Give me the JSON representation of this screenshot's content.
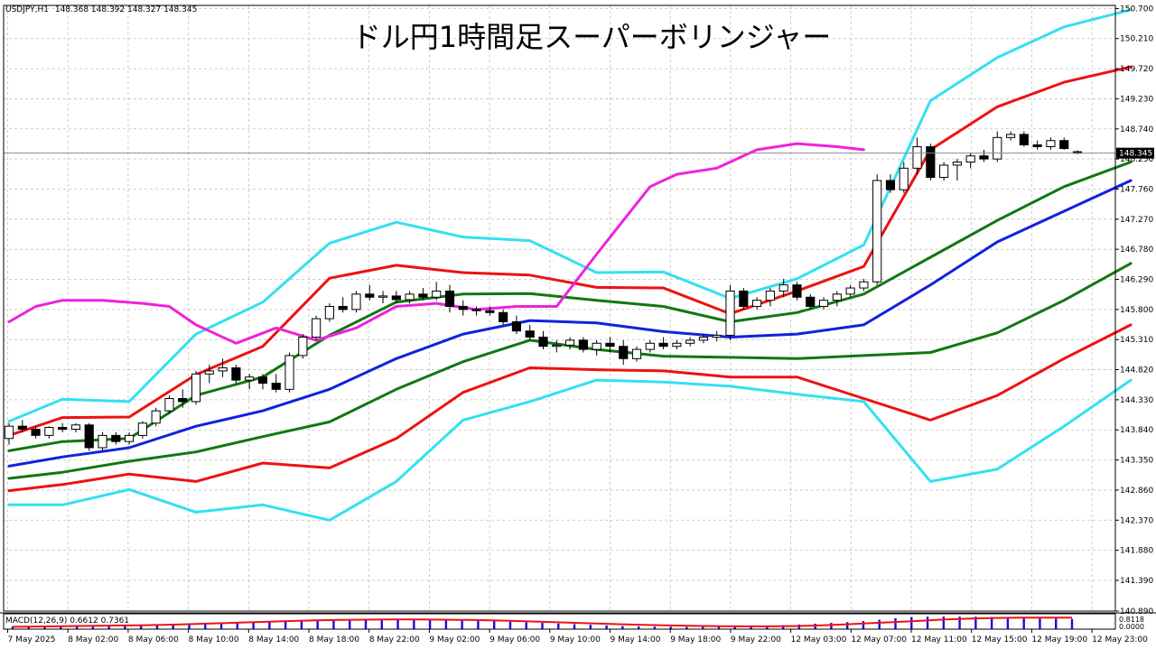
{
  "header": {
    "symbol_label": "USDJPY,H1",
    "ohlc_text": "148.368 148.392 148.327 148.345",
    "overlay_title": "ドル円1時間足スーパーボリンジャー"
  },
  "macd": {
    "label": "MACD(12,26,9) 0.6612 0.7361",
    "scale_top": "0.8118",
    "scale_bottom": "0.0000"
  },
  "colors": {
    "background": "#ffffff",
    "grid": "#c0c0c0",
    "axis": "#000000",
    "candle_up": "#ffffff",
    "candle_down": "#000000",
    "band_outer": "#33e0f0",
    "band_2sigma": "#ee1111",
    "band_1sigma": "#117711",
    "middle_line": "#1122dd",
    "chikou": "#ee22dd",
    "macd_hist": "#1111dd",
    "macd_signal": "#ee1111"
  },
  "chart_data": {
    "type": "line",
    "title": "ドル円1時間足スーパーボリンジャー",
    "symbol": "USDJPY,H1",
    "last_price": "148.345",
    "ylim": [
      140.89,
      150.75
    ],
    "y_ticks": [
      "150.700",
      "150.210",
      "149.720",
      "149.230",
      "148.740",
      "148.250",
      "147.760",
      "147.270",
      "146.780",
      "146.290",
      "145.800",
      "145.310",
      "144.820",
      "144.330",
      "143.840",
      "143.350",
      "142.860",
      "142.370",
      "141.880",
      "141.390",
      "140.890"
    ],
    "x_ticks": [
      "7 May 2025",
      "8 May 02:00",
      "8 May 06:00",
      "8 May 10:00",
      "8 May 14:00",
      "8 May 18:00",
      "8 May 22:00",
      "9 May 02:00",
      "9 May 06:00",
      "9 May 10:00",
      "9 May 14:00",
      "9 May 18:00",
      "9 May 22:00",
      "12 May 03:00",
      "12 May 07:00",
      "12 May 11:00",
      "12 May 15:00",
      "12 May 19:00",
      "12 May 23:00"
    ],
    "candles": [
      [
        143.7,
        143.95,
        143.6,
        143.9
      ],
      [
        143.9,
        144.0,
        143.8,
        143.85
      ],
      [
        143.85,
        143.9,
        143.7,
        143.75
      ],
      [
        143.75,
        143.9,
        143.7,
        143.88
      ],
      [
        143.88,
        143.95,
        143.8,
        143.85
      ],
      [
        143.85,
        143.95,
        143.8,
        143.92
      ],
      [
        143.92,
        143.95,
        143.5,
        143.55
      ],
      [
        143.55,
        143.8,
        143.5,
        143.75
      ],
      [
        143.75,
        143.8,
        143.6,
        143.65
      ],
      [
        143.65,
        143.8,
        143.6,
        143.75
      ],
      [
        143.75,
        143.98,
        143.7,
        143.95
      ],
      [
        143.95,
        144.2,
        143.9,
        144.15
      ],
      [
        144.15,
        144.4,
        144.1,
        144.35
      ],
      [
        144.35,
        144.5,
        144.2,
        144.3
      ],
      [
        144.3,
        144.8,
        144.25,
        144.75
      ],
      [
        144.75,
        144.9,
        144.6,
        144.8
      ],
      [
        144.8,
        145.0,
        144.7,
        144.85
      ],
      [
        144.85,
        144.9,
        144.6,
        144.65
      ],
      [
        144.65,
        144.75,
        144.5,
        144.7
      ],
      [
        144.7,
        144.75,
        144.5,
        144.6
      ],
      [
        144.6,
        144.75,
        144.45,
        144.5
      ],
      [
        144.5,
        145.1,
        144.45,
        145.05
      ],
      [
        145.05,
        145.4,
        145.0,
        145.35
      ],
      [
        145.35,
        145.7,
        145.3,
        145.65
      ],
      [
        145.65,
        145.9,
        145.6,
        145.85
      ],
      [
        145.85,
        146.0,
        145.75,
        145.8
      ],
      [
        145.8,
        146.1,
        145.75,
        146.05
      ],
      [
        146.05,
        146.2,
        145.95,
        146.0
      ],
      [
        146.0,
        146.1,
        145.9,
        146.02
      ],
      [
        146.02,
        146.1,
        145.9,
        145.96
      ],
      [
        145.96,
        146.1,
        145.9,
        146.05
      ],
      [
        146.05,
        146.15,
        145.95,
        146.0
      ],
      [
        146.0,
        146.25,
        145.95,
        146.1
      ],
      [
        146.1,
        146.2,
        145.75,
        145.85
      ],
      [
        145.85,
        145.95,
        145.7,
        145.8
      ],
      [
        145.8,
        145.85,
        145.7,
        145.78
      ],
      [
        145.78,
        145.85,
        145.7,
        145.75
      ],
      [
        145.75,
        145.8,
        145.55,
        145.6
      ],
      [
        145.6,
        145.7,
        145.4,
        145.45
      ],
      [
        145.45,
        145.55,
        145.3,
        145.35
      ],
      [
        145.35,
        145.45,
        145.15,
        145.2
      ],
      [
        145.2,
        145.3,
        145.1,
        145.22
      ],
      [
        145.22,
        145.35,
        145.15,
        145.3
      ],
      [
        145.3,
        145.35,
        145.1,
        145.15
      ],
      [
        145.15,
        145.3,
        145.05,
        145.25
      ],
      [
        145.25,
        145.35,
        145.1,
        145.2
      ],
      [
        145.2,
        145.3,
        144.9,
        145.0
      ],
      [
        145.0,
        145.2,
        144.95,
        145.15
      ],
      [
        145.15,
        145.3,
        145.1,
        145.25
      ],
      [
        145.25,
        145.35,
        145.15,
        145.2
      ],
      [
        145.2,
        145.3,
        145.15,
        145.25
      ],
      [
        145.25,
        145.35,
        145.2,
        145.3
      ],
      [
        145.3,
        145.4,
        145.25,
        145.35
      ],
      [
        145.35,
        145.45,
        145.28,
        145.38
      ],
      [
        145.38,
        146.2,
        145.3,
        146.1
      ],
      [
        146.1,
        146.15,
        145.8,
        145.85
      ],
      [
        145.85,
        146.0,
        145.8,
        145.95
      ],
      [
        145.95,
        146.15,
        145.85,
        146.1
      ],
      [
        146.1,
        146.3,
        146.0,
        146.2
      ],
      [
        146.2,
        146.25,
        145.95,
        146.0
      ],
      [
        146.0,
        146.05,
        145.8,
        145.85
      ],
      [
        145.85,
        146.0,
        145.8,
        145.95
      ],
      [
        145.95,
        146.1,
        145.85,
        146.05
      ],
      [
        146.05,
        146.2,
        146.0,
        146.15
      ],
      [
        146.15,
        146.3,
        146.1,
        146.25
      ],
      [
        146.25,
        148.0,
        146.2,
        147.9
      ],
      [
        147.9,
        148.0,
        147.7,
        147.75
      ],
      [
        147.75,
        148.2,
        147.7,
        148.1
      ],
      [
        148.1,
        148.6,
        148.0,
        148.45
      ],
      [
        148.45,
        148.5,
        147.9,
        147.95
      ],
      [
        147.95,
        148.2,
        147.9,
        148.15
      ],
      [
        148.15,
        148.25,
        147.9,
        148.2
      ],
      [
        148.2,
        148.35,
        148.1,
        148.3
      ],
      [
        148.3,
        148.4,
        148.2,
        148.25
      ],
      [
        148.25,
        148.7,
        148.2,
        148.6
      ],
      [
        148.6,
        148.7,
        148.55,
        148.65
      ],
      [
        148.65,
        148.7,
        148.45,
        148.48
      ],
      [
        148.48,
        148.55,
        148.4,
        148.45
      ],
      [
        148.45,
        148.6,
        148.4,
        148.55
      ],
      [
        148.55,
        148.6,
        148.4,
        148.42
      ],
      [
        148.368,
        148.392,
        148.327,
        148.345
      ]
    ],
    "series": [
      {
        "name": "",
        "role": "outer_upper",
        "x": [
          0,
          4,
          9,
          14,
          19,
          24,
          29,
          34,
          39,
          44,
          49,
          54,
          59,
          64,
          69,
          74,
          79,
          84
        ],
        "values": [
          143.98,
          144.34,
          144.3,
          145.4,
          145.92,
          146.88,
          147.22,
          146.98,
          146.92,
          146.4,
          146.41,
          145.98,
          146.3,
          146.85,
          149.2,
          149.9,
          150.4,
          150.68
        ]
      },
      {
        "name": "",
        "role": "upper_2",
        "x": [
          0,
          4,
          9,
          14,
          19,
          24,
          29,
          34,
          39,
          44,
          49,
          54,
          59,
          64,
          69,
          74,
          79,
          84
        ],
        "values": [
          143.75,
          144.04,
          144.05,
          144.74,
          145.2,
          146.31,
          146.52,
          146.4,
          146.36,
          146.16,
          146.15,
          145.73,
          146.1,
          146.5,
          148.4,
          149.1,
          149.5,
          149.75
        ]
      },
      {
        "name": "",
        "role": "upper_1",
        "x": [
          0,
          4,
          9,
          14,
          19,
          24,
          29,
          34,
          39,
          44,
          49,
          54,
          59,
          64,
          69,
          74,
          79,
          84
        ],
        "values": [
          143.5,
          143.65,
          143.7,
          144.4,
          144.7,
          145.38,
          145.92,
          146.05,
          146.06,
          145.95,
          145.85,
          145.6,
          145.75,
          146.05,
          146.65,
          147.25,
          147.8,
          148.2
        ]
      },
      {
        "name": "",
        "role": "middle",
        "x": [
          0,
          4,
          9,
          14,
          19,
          24,
          29,
          34,
          39,
          44,
          49,
          54,
          59,
          64,
          69,
          74,
          79,
          84
        ],
        "values": [
          143.25,
          143.4,
          143.55,
          143.9,
          144.15,
          144.5,
          145.0,
          145.4,
          145.62,
          145.58,
          145.44,
          145.35,
          145.4,
          145.55,
          146.2,
          146.9,
          147.4,
          147.9
        ]
      },
      {
        "name": "",
        "role": "lower_1",
        "x": [
          0,
          4,
          9,
          14,
          19,
          24,
          29,
          34,
          39,
          44,
          49,
          54,
          59,
          64,
          69,
          74,
          79,
          84
        ],
        "values": [
          143.05,
          143.15,
          143.33,
          143.48,
          143.73,
          143.97,
          144.5,
          144.95,
          145.3,
          145.15,
          145.04,
          145.02,
          145.0,
          145.05,
          145.1,
          145.42,
          145.95,
          146.55
        ]
      },
      {
        "name": "",
        "role": "lower_2",
        "x": [
          0,
          4,
          9,
          14,
          19,
          24,
          29,
          34,
          39,
          44,
          49,
          54,
          59,
          64,
          69,
          74,
          79,
          84
        ],
        "values": [
          142.85,
          142.95,
          143.12,
          143.0,
          143.3,
          143.22,
          143.7,
          144.45,
          144.85,
          144.82,
          144.8,
          144.7,
          144.7,
          144.35,
          144.0,
          144.4,
          145.0,
          145.55
        ]
      },
      {
        "name": "",
        "role": "outer_lower",
        "x": [
          0,
          4,
          9,
          14,
          19,
          24,
          29,
          34,
          39,
          44,
          49,
          54,
          59,
          64,
          69,
          74,
          79,
          84
        ],
        "values": [
          142.62,
          142.62,
          142.87,
          142.5,
          142.62,
          142.37,
          143.0,
          144.0,
          144.3,
          144.65,
          144.62,
          144.55,
          144.42,
          144.3,
          143.0,
          143.2,
          143.9,
          144.65
        ]
      },
      {
        "name": "",
        "role": "chikou",
        "x": [
          0,
          2,
          4,
          7,
          10,
          12,
          14,
          17,
          20,
          23,
          26,
          29,
          32,
          35,
          38,
          41,
          44,
          48,
          50,
          53,
          56,
          59,
          62,
          64
        ],
        "values": [
          145.6,
          145.85,
          145.95,
          145.95,
          145.9,
          145.85,
          145.55,
          145.25,
          145.5,
          145.3,
          145.5,
          145.85,
          145.9,
          145.8,
          145.85,
          145.85,
          146.7,
          147.8,
          148.0,
          148.1,
          148.4,
          148.5,
          148.45,
          148.4
        ]
      }
    ],
    "macd_histogram": [
      0.18,
      0.19,
      0.2,
      0.2,
      0.21,
      0.22,
      0.24,
      0.26,
      0.28,
      0.3,
      0.32,
      0.34,
      0.36,
      0.38,
      0.4,
      0.42,
      0.45,
      0.48,
      0.5,
      0.52,
      0.54,
      0.56,
      0.58,
      0.6,
      0.62,
      0.63,
      0.62,
      0.6,
      0.58,
      0.55,
      0.52,
      0.48,
      0.44,
      0.4,
      0.36,
      0.32,
      0.28,
      0.24,
      0.2,
      0.18,
      0.16,
      0.15,
      0.14,
      0.14,
      0.15,
      0.16,
      0.18,
      0.2,
      0.25,
      0.3,
      0.35,
      0.4,
      0.45,
      0.52,
      0.6,
      0.7,
      0.78,
      0.8,
      0.81,
      0.8,
      0.8,
      0.78,
      0.75,
      0.72,
      0.7,
      0.68,
      0.66
    ],
    "macd_signal": [
      0.15,
      0.17,
      0.19,
      0.21,
      0.23,
      0.25,
      0.28,
      0.32,
      0.37,
      0.42,
      0.47,
      0.52,
      0.56,
      0.59,
      0.61,
      0.62,
      0.62,
      0.61,
      0.59,
      0.56,
      0.52,
      0.47,
      0.42,
      0.37,
      0.32,
      0.28,
      0.24,
      0.21,
      0.19,
      0.18,
      0.18,
      0.2,
      0.24,
      0.3,
      0.38,
      0.46,
      0.54,
      0.62,
      0.68,
      0.72,
      0.74,
      0.74,
      0.74
    ]
  }
}
